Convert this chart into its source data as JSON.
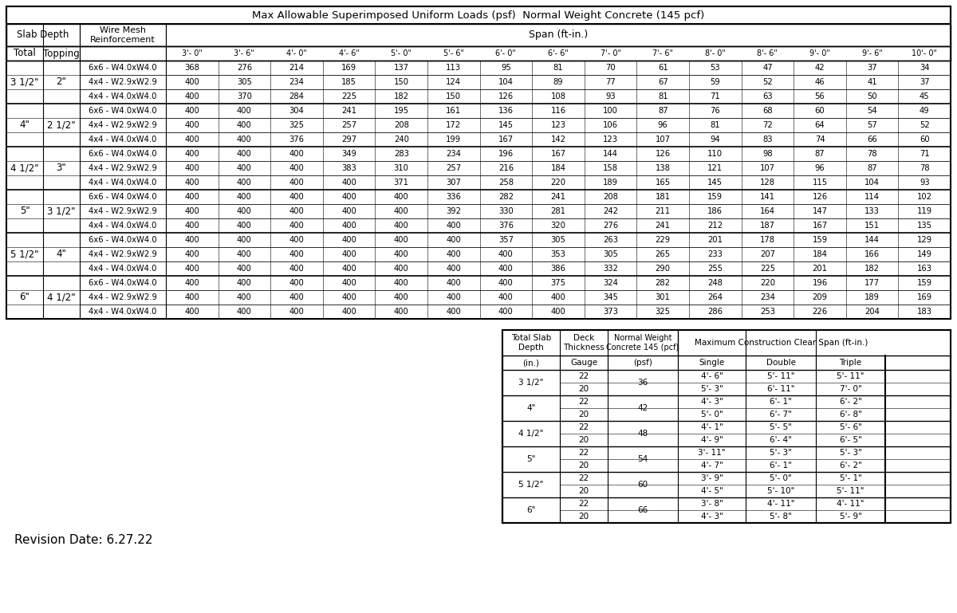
{
  "title": "Max Allowable Superimposed Uniform Loads (psf)  Normal Weight Concrete (145 pcf)",
  "main_col_headers": [
    "3'- 0\"",
    "3'- 6\"",
    "4'- 0\"",
    "4'- 6\"",
    "5'- 0\"",
    "5'- 6\"",
    "6'- 0\"",
    "6'- 6\"",
    "7'- 0\"",
    "7'- 6\"",
    "8'- 0\"",
    "8'- 6\"",
    "9'- 0\"",
    "9'- 6\"",
    "10'- 0\""
  ],
  "row_groups": [
    {
      "total": "3 1/2\"",
      "topping": "2\"",
      "rows": [
        {
          "mesh": "6x6 - W4.0xW4.0",
          "vals": [
            368,
            276,
            214,
            169,
            137,
            113,
            95,
            81,
            70,
            61,
            53,
            47,
            42,
            37,
            34
          ]
        },
        {
          "mesh": "4x4 - W2.9xW2.9",
          "vals": [
            400,
            305,
            234,
            185,
            150,
            124,
            104,
            89,
            77,
            67,
            59,
            52,
            46,
            41,
            37
          ]
        },
        {
          "mesh": "4x4 - W4.0xW4.0",
          "vals": [
            400,
            370,
            284,
            225,
            182,
            150,
            126,
            108,
            93,
            81,
            71,
            63,
            56,
            50,
            45
          ]
        }
      ]
    },
    {
      "total": "4\"",
      "topping": "2 1/2\"",
      "rows": [
        {
          "mesh": "6x6 - W4.0xW4.0",
          "vals": [
            400,
            400,
            304,
            241,
            195,
            161,
            136,
            116,
            100,
            87,
            76,
            68,
            60,
            54,
            49
          ]
        },
        {
          "mesh": "4x4 - W2.9xW2.9",
          "vals": [
            400,
            400,
            325,
            257,
            208,
            172,
            145,
            123,
            106,
            96,
            81,
            72,
            64,
            57,
            52
          ]
        },
        {
          "mesh": "4x4 - W4.0xW4.0",
          "vals": [
            400,
            400,
            376,
            297,
            240,
            199,
            167,
            142,
            123,
            107,
            94,
            83,
            74,
            66,
            60
          ]
        }
      ]
    },
    {
      "total": "4 1/2\"",
      "topping": "3\"",
      "rows": [
        {
          "mesh": "6x6 - W4.0xW4.0",
          "vals": [
            400,
            400,
            400,
            349,
            283,
            234,
            196,
            167,
            144,
            126,
            110,
            98,
            87,
            78,
            71
          ]
        },
        {
          "mesh": "4x4 - W2.9xW2.9",
          "vals": [
            400,
            400,
            400,
            383,
            310,
            257,
            216,
            184,
            158,
            138,
            121,
            107,
            96,
            87,
            78
          ]
        },
        {
          "mesh": "4x4 - W4.0xW4.0",
          "vals": [
            400,
            400,
            400,
            400,
            371,
            307,
            258,
            220,
            189,
            165,
            145,
            128,
            115,
            104,
            93
          ]
        }
      ]
    },
    {
      "total": "5\"",
      "topping": "3 1/2\"",
      "rows": [
        {
          "mesh": "6x6 - W4.0xW4.0",
          "vals": [
            400,
            400,
            400,
            400,
            400,
            336,
            282,
            241,
            208,
            181,
            159,
            141,
            126,
            114,
            102
          ]
        },
        {
          "mesh": "4x4 - W2.9xW2.9",
          "vals": [
            400,
            400,
            400,
            400,
            400,
            392,
            330,
            281,
            242,
            211,
            186,
            164,
            147,
            133,
            119
          ]
        },
        {
          "mesh": "4x4 - W4.0xW4.0",
          "vals": [
            400,
            400,
            400,
            400,
            400,
            400,
            376,
            320,
            276,
            241,
            212,
            187,
            167,
            151,
            135
          ]
        }
      ]
    },
    {
      "total": "5 1/2\"",
      "topping": "4\"",
      "rows": [
        {
          "mesh": "6x6 - W4.0xW4.0",
          "vals": [
            400,
            400,
            400,
            400,
            400,
            400,
            357,
            305,
            263,
            229,
            201,
            178,
            159,
            144,
            129
          ]
        },
        {
          "mesh": "4x4 - W2.9xW2.9",
          "vals": [
            400,
            400,
            400,
            400,
            400,
            400,
            400,
            353,
            305,
            265,
            233,
            207,
            184,
            166,
            149
          ]
        },
        {
          "mesh": "4x4 - W4.0xW4.0",
          "vals": [
            400,
            400,
            400,
            400,
            400,
            400,
            400,
            386,
            332,
            290,
            255,
            225,
            201,
            182,
            163
          ]
        }
      ]
    },
    {
      "total": "6\"",
      "topping": "4 1/2\"",
      "rows": [
        {
          "mesh": "6x6 - W4.0xW4.0",
          "vals": [
            400,
            400,
            400,
            400,
            400,
            400,
            400,
            375,
            324,
            282,
            248,
            220,
            196,
            177,
            159
          ]
        },
        {
          "mesh": "4x4 - W2.9xW2.9",
          "vals": [
            400,
            400,
            400,
            400,
            400,
            400,
            400,
            400,
            345,
            301,
            264,
            234,
            209,
            189,
            169
          ]
        },
        {
          "mesh": "4x4 - W4.0xW4.0",
          "vals": [
            400,
            400,
            400,
            400,
            400,
            400,
            400,
            400,
            373,
            325,
            286,
            253,
            226,
            204,
            183
          ]
        }
      ]
    }
  ],
  "bottom_depth_groups": [
    {
      "depth": "3 1/2\"",
      "psf": "36",
      "rows": [
        {
          "gauge": "22",
          "single": "4'- 6\"",
          "double": "5'- 11\"",
          "triple": "5'- 11\""
        },
        {
          "gauge": "20",
          "single": "5'- 3\"",
          "double": "6'- 11\"",
          "triple": "7'- 0\""
        }
      ]
    },
    {
      "depth": "4\"",
      "psf": "42",
      "rows": [
        {
          "gauge": "22",
          "single": "4'- 3\"",
          "double": "6'- 1\"",
          "triple": "6'- 2\""
        },
        {
          "gauge": "20",
          "single": "5'- 0\"",
          "double": "6'- 7\"",
          "triple": "6'- 8\""
        }
      ]
    },
    {
      "depth": "4 1/2\"",
      "psf": "48",
      "rows": [
        {
          "gauge": "22",
          "single": "4'- 1\"",
          "double": "5'- 5\"",
          "triple": "5'- 6\""
        },
        {
          "gauge": "20",
          "single": "4'- 9\"",
          "double": "6'- 4\"",
          "triple": "6'- 5\""
        }
      ]
    },
    {
      "depth": "5\"",
      "psf": "54",
      "rows": [
        {
          "gauge": "22",
          "single": "3'- 11\"",
          "double": "5'- 3\"",
          "triple": "5'- 3\""
        },
        {
          "gauge": "20",
          "single": "4'- 7\"",
          "double": "6'- 1\"",
          "triple": "6'- 2\""
        }
      ]
    },
    {
      "depth": "5 1/2\"",
      "psf": "60",
      "rows": [
        {
          "gauge": "22",
          "single": "3'- 9\"",
          "double": "5'- 0\"",
          "triple": "5'- 1\""
        },
        {
          "gauge": "20",
          "single": "4'- 5\"",
          "double": "5'- 10\"",
          "triple": "5'- 11\""
        }
      ]
    },
    {
      "depth": "6\"",
      "psf": "66",
      "rows": [
        {
          "gauge": "22",
          "single": "3'- 8\"",
          "double": "4'- 11\"",
          "triple": "4'- 11\""
        },
        {
          "gauge": "20",
          "single": "4'- 3\"",
          "double": "5'- 8\"",
          "triple": "5'- 9\""
        }
      ]
    }
  ],
  "revision_text": "Revision Date: 6.27.22"
}
